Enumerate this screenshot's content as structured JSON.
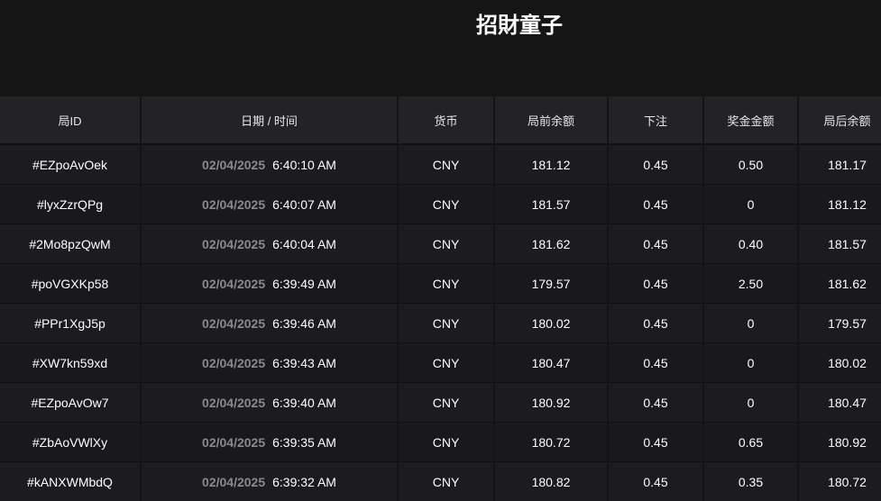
{
  "title": "招財童子",
  "headers": [
    "局ID",
    "日期 / 时间",
    "货币",
    "局前余额",
    "下注",
    "奖金金额",
    "局后余额"
  ],
  "rows": [
    {
      "id": "#EZpoAvOek",
      "date": "02/04/2025",
      "time": "6:40:10 AM",
      "currency": "CNY",
      "before": "181.12",
      "bet": "0.45",
      "win": "0.50",
      "after": "181.17"
    },
    {
      "id": "#lyxZzrQPg",
      "date": "02/04/2025",
      "time": "6:40:07 AM",
      "currency": "CNY",
      "before": "181.57",
      "bet": "0.45",
      "win": "0",
      "after": "181.12"
    },
    {
      "id": "#2Mo8pzQwM",
      "date": "02/04/2025",
      "time": "6:40:04 AM",
      "currency": "CNY",
      "before": "181.62",
      "bet": "0.45",
      "win": "0.40",
      "after": "181.57"
    },
    {
      "id": "#poVGXKp58",
      "date": "02/04/2025",
      "time": "6:39:49 AM",
      "currency": "CNY",
      "before": "179.57",
      "bet": "0.45",
      "win": "2.50",
      "after": "181.62"
    },
    {
      "id": "#PPr1XgJ5p",
      "date": "02/04/2025",
      "time": "6:39:46 AM",
      "currency": "CNY",
      "before": "180.02",
      "bet": "0.45",
      "win": "0",
      "after": "179.57"
    },
    {
      "id": "#XW7kn59xd",
      "date": "02/04/2025",
      "time": "6:39:43 AM",
      "currency": "CNY",
      "before": "180.47",
      "bet": "0.45",
      "win": "0",
      "after": "180.02"
    },
    {
      "id": "#EZpoAvOw7",
      "date": "02/04/2025",
      "time": "6:39:40 AM",
      "currency": "CNY",
      "before": "180.92",
      "bet": "0.45",
      "win": "0",
      "after": "180.47"
    },
    {
      "id": "#ZbAoVWlXy",
      "date": "02/04/2025",
      "time": "6:39:35 AM",
      "currency": "CNY",
      "before": "180.72",
      "bet": "0.45",
      "win": "0.65",
      "after": "180.92"
    },
    {
      "id": "#kANXWMbdQ",
      "date": "02/04/2025",
      "time": "6:39:32 AM",
      "currency": "CNY",
      "before": "180.82",
      "bet": "0.45",
      "win": "0.35",
      "after": "180.72"
    }
  ]
}
